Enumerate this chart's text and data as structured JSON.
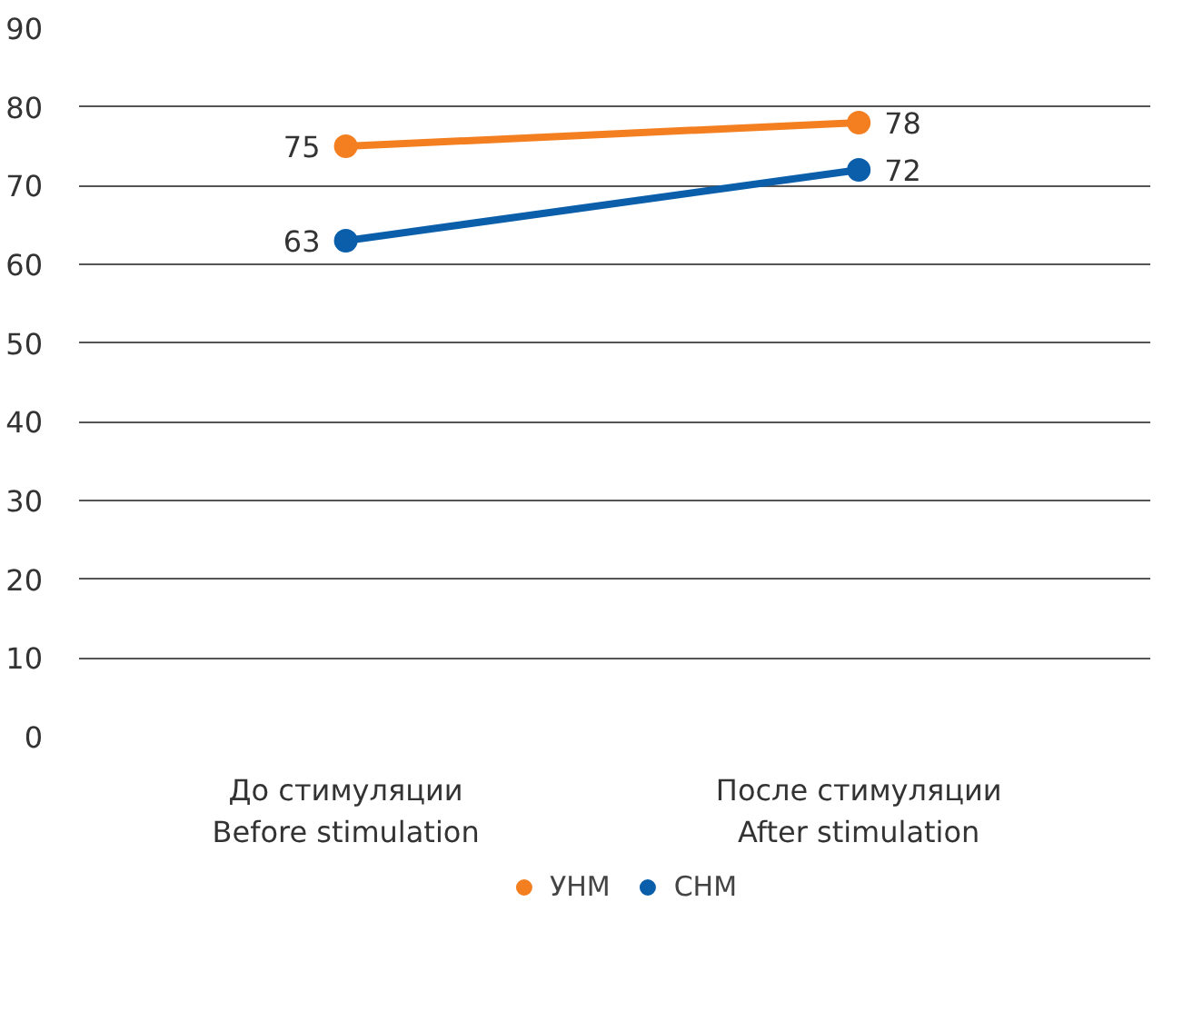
{
  "chart_data": {
    "type": "line",
    "categories": [
      "До стимуляции\nBefore stimulation",
      "После стимуляции\nAfter stimulation"
    ],
    "series": [
      {
        "name": "УНМ",
        "color": "#f47f20",
        "values": [
          75,
          78
        ]
      },
      {
        "name": "СНМ",
        "color": "#0a5eaa",
        "values": [
          63,
          72
        ]
      }
    ],
    "ylim": [
      0,
      90
    ],
    "yticks": [
      0,
      10,
      20,
      30,
      40,
      50,
      60,
      70,
      80,
      90
    ],
    "grid": "y",
    "legend": "bottom",
    "marker": "circle",
    "line_style": "solid",
    "data_labels": true
  }
}
